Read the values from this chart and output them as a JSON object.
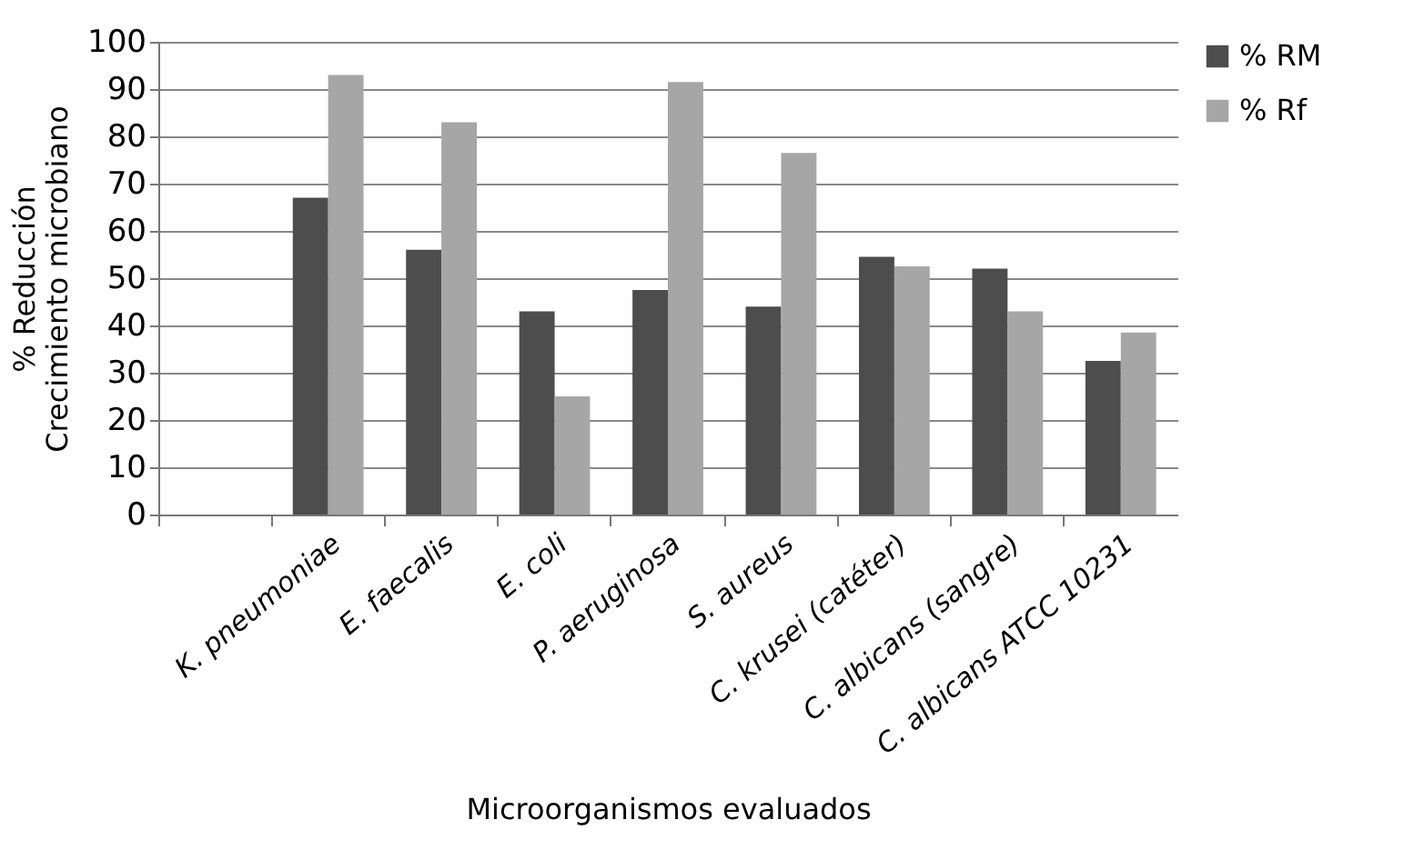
{
  "chart_data": {
    "type": "bar",
    "xlabel": "Microorganismos evaluados",
    "ylabel": "% Reducción\nCrecimiento microbiano",
    "categories": [
      null,
      "K. pneumoniae",
      "E. faecalis",
      "E. coli",
      "P. aeruginosa",
      "S. aureus",
      "C. krusei (catéter)",
      "C. albicans (sangre)",
      "C. albicans ATCC 10231"
    ],
    "series": [
      {
        "name": "% RM",
        "color": "#4d4d4d",
        "values": [
          null,
          67,
          56,
          43,
          47.5,
          44,
          54.5,
          52,
          32.5
        ]
      },
      {
        "name": "% Rf",
        "color": "#a6a6a6",
        "values": [
          null,
          93,
          83,
          25,
          91.5,
          76.5,
          52.5,
          43,
          38.5
        ]
      }
    ],
    "ylim": [
      0,
      100
    ],
    "yticks": [
      0,
      10,
      20,
      30,
      40,
      50,
      60,
      70,
      80,
      90,
      100
    ],
    "grid": "y",
    "legend": "right"
  }
}
